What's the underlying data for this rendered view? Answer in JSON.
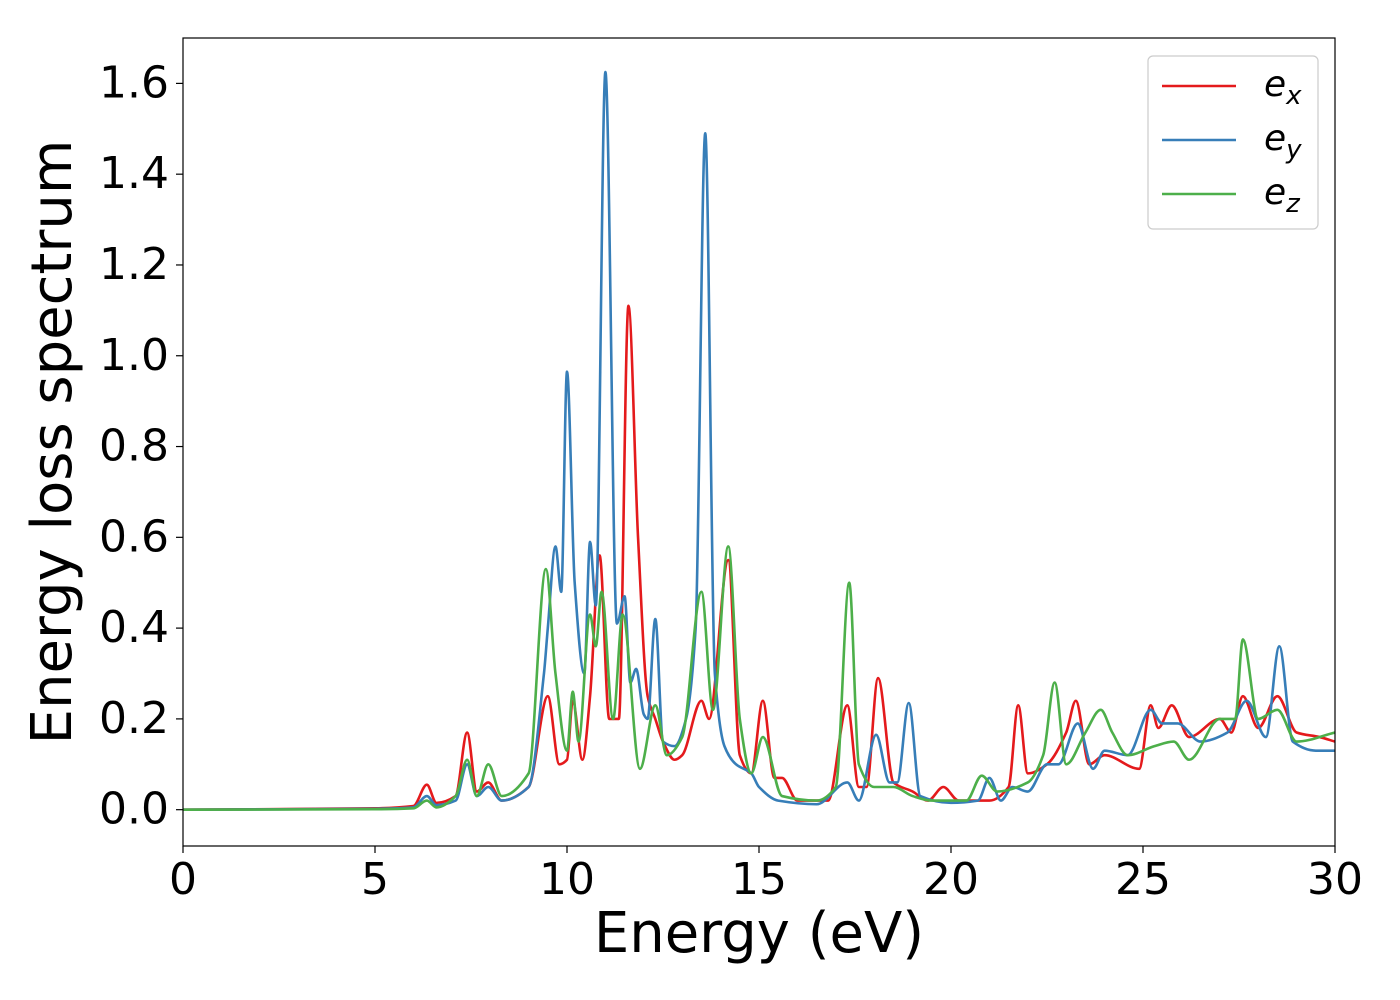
{
  "chart_data": {
    "type": "line",
    "xlabel": "Energy (eV)",
    "ylabel": "Energy loss spectrum",
    "xlim": [
      0,
      30
    ],
    "ylim": [
      -0.08,
      1.7
    ],
    "xticks": [
      0,
      5,
      10,
      15,
      20,
      25,
      30
    ],
    "yticks": [
      {
        "value": 0,
        "label": "0.0"
      },
      0.2,
      0.4,
      0.6,
      0.8,
      {
        "value": 1,
        "label": "1.0"
      },
      1.2,
      1.4,
      1.6
    ],
    "grid": false,
    "legend": "upper right",
    "series": [
      {
        "name": "ex",
        "color": "#e41a1c",
        "x": [
          0,
          5,
          6,
          6.35,
          6.6,
          7.1,
          7.4,
          7.65,
          7.95,
          8.3,
          9,
          9.5,
          9.8,
          10,
          10.15,
          10.4,
          10.6,
          10.85,
          11.1,
          11.35,
          11.6,
          11.85,
          12.1,
          12.3,
          12.5,
          12.8,
          13,
          13.5,
          13.7,
          14.2,
          14.5,
          14.8,
          15.1,
          15.4,
          15.6,
          16,
          16.8,
          17.3,
          17.6,
          17.8,
          18.1,
          18.5,
          19,
          19.4,
          19.8,
          20.2,
          21,
          21.5,
          21.75,
          22,
          22.5,
          23,
          23.25,
          23.6,
          24,
          24.9,
          25.2,
          25.4,
          25.75,
          26.2,
          27,
          27.3,
          27.6,
          28,
          28.5,
          29,
          29.6,
          30
        ],
        "values": [
          0,
          0.003,
          0.008,
          0.055,
          0.015,
          0.03,
          0.17,
          0.04,
          0.06,
          0.02,
          0.05,
          0.25,
          0.1,
          0.11,
          0.24,
          0.11,
          0.25,
          0.56,
          0.2,
          0.2,
          1.11,
          0.6,
          0.25,
          0.2,
          0.15,
          0.11,
          0.12,
          0.24,
          0.2,
          0.55,
          0.12,
          0.08,
          0.24,
          0.07,
          0.07,
          0.02,
          0.02,
          0.23,
          0.05,
          0.05,
          0.29,
          0.06,
          0.04,
          0.02,
          0.05,
          0.02,
          0.02,
          0.05,
          0.23,
          0.08,
          0.1,
          0.17,
          0.24,
          0.1,
          0.12,
          0.09,
          0.23,
          0.18,
          0.23,
          0.16,
          0.2,
          0.17,
          0.25,
          0.18,
          0.25,
          0.17,
          0.16,
          0.15
        ]
      },
      {
        "name": "ey",
        "color": "#377eb8",
        "x": [
          0,
          5,
          6,
          6.35,
          6.6,
          7.1,
          7.4,
          7.65,
          7.95,
          8.3,
          9,
          9.4,
          9.5,
          9.7,
          9.85,
          10,
          10.2,
          10.45,
          10.6,
          10.75,
          11,
          11.3,
          11.5,
          11.65,
          11.8,
          12,
          12.1,
          12.3,
          12.5,
          12.8,
          13.1,
          13.35,
          13.6,
          13.85,
          14.1,
          14.4,
          14.8,
          15,
          15.5,
          16.5,
          17.3,
          17.6,
          18.05,
          18.4,
          18.6,
          18.9,
          19.2,
          20,
          20.7,
          21,
          21.3,
          21.6,
          22,
          22.5,
          22.8,
          23.3,
          23.7,
          24,
          24.6,
          25.2,
          25.5,
          25.9,
          26.5,
          27.2,
          27.7,
          28.2,
          28.55,
          28.9,
          29.5,
          30
        ],
        "values": [
          0,
          0.002,
          0.005,
          0.03,
          0.01,
          0.02,
          0.1,
          0.03,
          0.05,
          0.02,
          0.05,
          0.3,
          0.4,
          0.58,
          0.48,
          0.965,
          0.5,
          0.3,
          0.59,
          0.45,
          1.625,
          0.41,
          0.47,
          0.28,
          0.31,
          0.21,
          0.2,
          0.42,
          0.15,
          0.14,
          0.2,
          0.4,
          1.49,
          0.3,
          0.14,
          0.1,
          0.08,
          0.05,
          0.02,
          0.012,
          0.06,
          0.02,
          0.165,
          0.06,
          0.06,
          0.235,
          0.03,
          0.015,
          0.02,
          0.07,
          0.02,
          0.05,
          0.04,
          0.1,
          0.1,
          0.19,
          0.09,
          0.13,
          0.12,
          0.22,
          0.19,
          0.19,
          0.15,
          0.17,
          0.24,
          0.16,
          0.36,
          0.15,
          0.13,
          0.13
        ]
      },
      {
        "name": "ez",
        "color": "#4daf4a",
        "x": [
          0,
          5,
          6,
          6.35,
          6.6,
          7.1,
          7.4,
          7.65,
          7.95,
          8.3,
          9,
          9.45,
          9.7,
          10,
          10.15,
          10.3,
          10.6,
          10.75,
          10.9,
          11.2,
          11.45,
          11.9,
          12.3,
          12.6,
          13,
          13.5,
          13.8,
          14.2,
          14.5,
          14.8,
          15.1,
          15.6,
          16.5,
          17,
          17.35,
          17.6,
          18,
          18.5,
          19,
          19.5,
          20.4,
          20.8,
          21.2,
          22,
          22.4,
          22.7,
          23,
          23.5,
          23.9,
          24.2,
          24.6,
          25.3,
          25.8,
          26.2,
          27,
          27.4,
          27.6,
          28,
          28.5,
          29,
          30
        ],
        "values": [
          0,
          0.001,
          0.003,
          0.02,
          0.005,
          0.03,
          0.11,
          0.03,
          0.1,
          0.03,
          0.08,
          0.53,
          0.3,
          0.13,
          0.26,
          0.15,
          0.43,
          0.36,
          0.48,
          0.2,
          0.43,
          0.09,
          0.23,
          0.12,
          0.16,
          0.48,
          0.22,
          0.58,
          0.2,
          0.08,
          0.16,
          0.03,
          0.02,
          0.05,
          0.5,
          0.1,
          0.05,
          0.05,
          0.03,
          0.02,
          0.02,
          0.075,
          0.04,
          0.06,
          0.12,
          0.28,
          0.1,
          0.17,
          0.22,
          0.17,
          0.12,
          0.14,
          0.15,
          0.11,
          0.2,
          0.2,
          0.375,
          0.2,
          0.22,
          0.15,
          0.17
        ]
      }
    ]
  }
}
